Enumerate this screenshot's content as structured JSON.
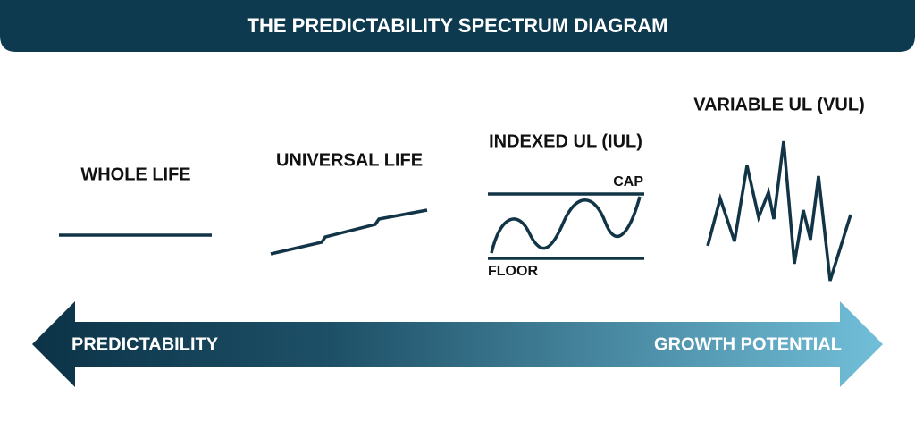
{
  "header": {
    "title": "THE PREDICTABILITY SPECTRUM DIAGRAM"
  },
  "products": [
    {
      "label": "WHOLE LIFE"
    },
    {
      "label": "UNIVERSAL LIFE"
    },
    {
      "label": "INDEXED UL (IUL)",
      "upper": "CAP",
      "lower": "FLOOR"
    },
    {
      "label": "VARIABLE UL (VUL)"
    }
  ],
  "spectrum": {
    "left": "PREDICTABILITY",
    "right": "GROWTH POTENTIAL"
  }
}
